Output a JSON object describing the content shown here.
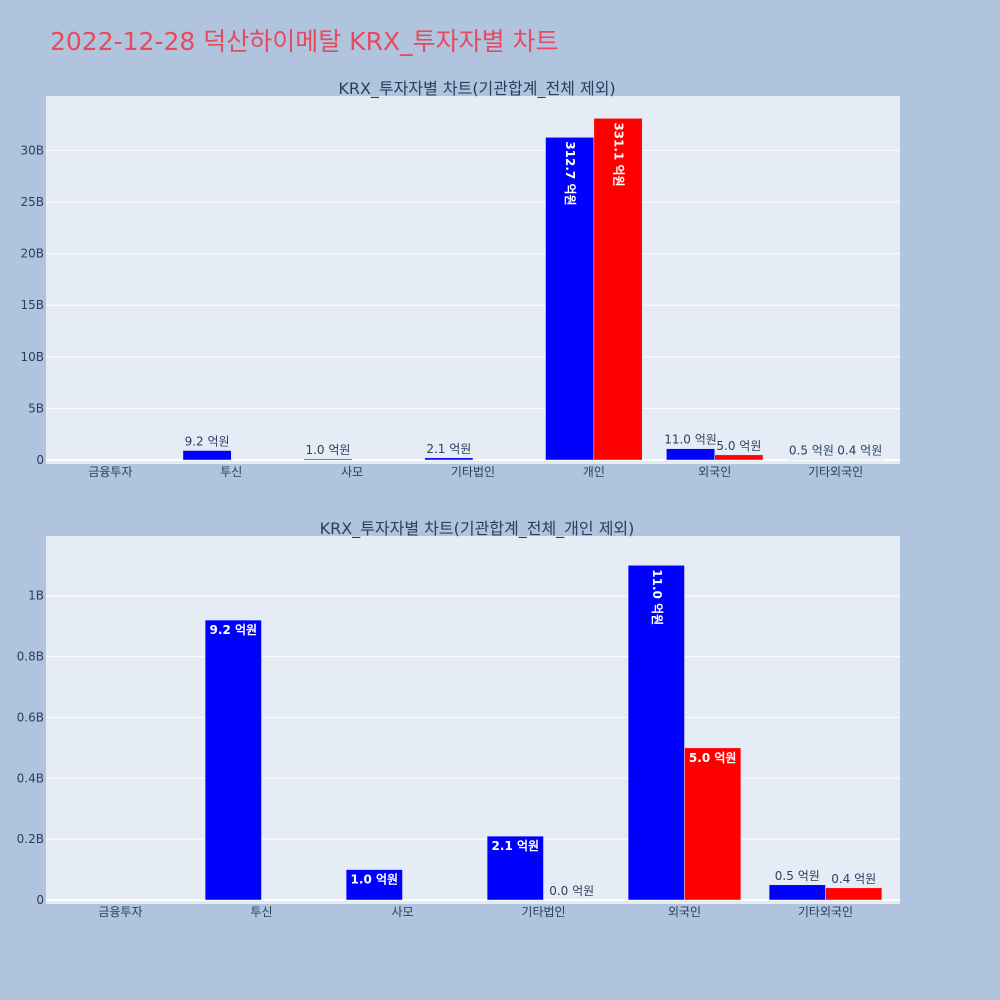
{
  "page": {
    "title": "2022-12-28 덕산하이메탈 KRX_투자자별 차트"
  },
  "colors": {
    "background": "#b0c4de",
    "plot_bg": "#e5ecf6",
    "title": "#e8495e",
    "buy": "#0000ff",
    "sell": "#ff0000",
    "text": "#2a3f5f"
  },
  "chart_data": [
    {
      "type": "bar",
      "title": "KRX_투자자별 차트(기관합계_전체 제외)",
      "categories": [
        "금융투자",
        "투신",
        "사모",
        "기타법인",
        "개인",
        "외국인",
        "기타외국인"
      ],
      "ylim": [
        0,
        34.5
      ],
      "yticks": [
        0,
        5,
        10,
        15,
        20,
        25,
        30
      ],
      "ytick_labels": [
        "0",
        "5B",
        "10B",
        "15B",
        "20B",
        "25B",
        "30B"
      ],
      "grid": true,
      "series": [
        {
          "color": "#0000ff",
          "values": [
            null,
            0.92,
            0.1,
            0.21,
            31.27,
            1.1,
            0.05
          ],
          "labels": [
            "",
            "9.2 억원",
            "1.0 억원",
            "2.1 억원",
            "312.7 억원",
            "11.0 억원",
            "0.5 억원"
          ]
        },
        {
          "color": "#ff0000",
          "values": [
            null,
            null,
            null,
            null,
            33.11,
            0.5,
            0.04
          ],
          "labels": [
            "",
            "",
            "",
            "",
            "331.1 억원",
            "5.0 억원",
            "0.4 억원"
          ]
        }
      ]
    },
    {
      "type": "bar",
      "title": "KRX_투자자별 차트(기관합계_전체_개인 제외)",
      "categories": [
        "금융투자",
        "투신",
        "사모",
        "기타법인",
        "외국인",
        "기타외국인"
      ],
      "ylim": [
        0,
        1.17
      ],
      "yticks": [
        0,
        0.2,
        0.4,
        0.6,
        0.8,
        1.0
      ],
      "ytick_labels": [
        "0",
        "0.2B",
        "0.4B",
        "0.6B",
        "0.8B",
        "1B"
      ],
      "grid": true,
      "series": [
        {
          "color": "#0000ff",
          "values": [
            null,
            0.92,
            0.1,
            0.21,
            1.1,
            0.05
          ],
          "labels": [
            "",
            "9.2 억원",
            "1.0 억원",
            "2.1 억원",
            "11.0 억원",
            "0.5 억원"
          ]
        },
        {
          "color": "#ff0000",
          "values": [
            null,
            null,
            null,
            0.0,
            0.5,
            0.04
          ],
          "labels": [
            "",
            "",
            "",
            "0.0 억원",
            "5.0 억원",
            "0.4 억원"
          ]
        }
      ]
    }
  ]
}
